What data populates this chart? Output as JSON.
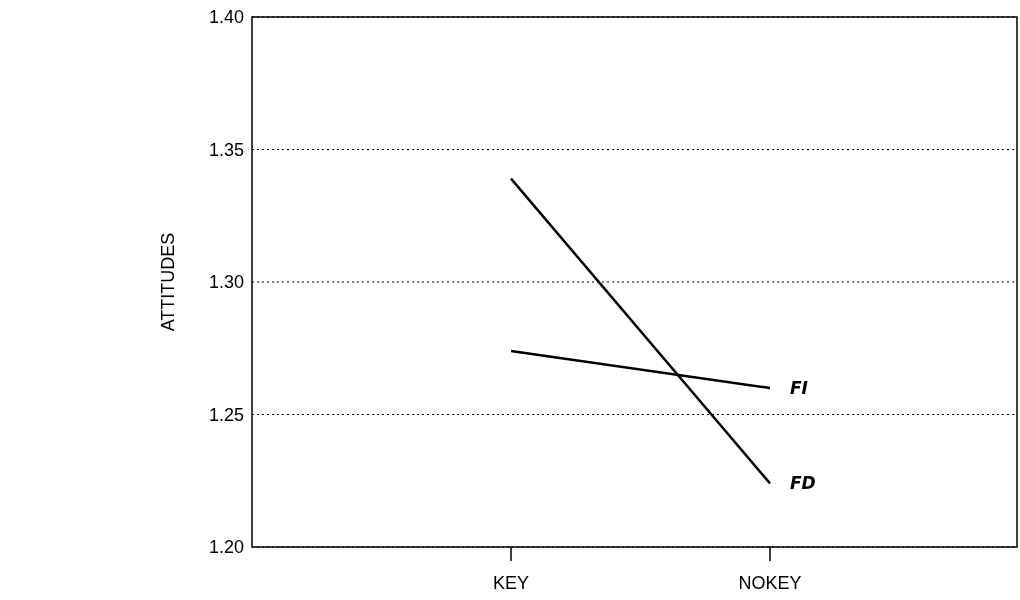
{
  "chart_data": {
    "type": "line",
    "ylabel": "ATTITUDES",
    "categories": [
      "KEY",
      "NOKEY"
    ],
    "series": [
      {
        "name": "FD",
        "color": "#000000",
        "values": [
          1.339,
          1.224
        ]
      },
      {
        "name": "FI",
        "color": "#000000",
        "values": [
          1.274,
          1.26
        ]
      }
    ],
    "ylim": [
      1.2,
      1.4
    ],
    "yticks": [
      {
        "value": 1.2,
        "label": "1.20"
      },
      {
        "value": 1.25,
        "label": "1.25"
      },
      {
        "value": 1.3,
        "label": "1.30"
      },
      {
        "value": 1.35,
        "label": "1.35"
      },
      {
        "value": 1.4,
        "label": "1.40"
      }
    ],
    "grid": "y",
    "line_style": "solid",
    "marker": "none"
  }
}
